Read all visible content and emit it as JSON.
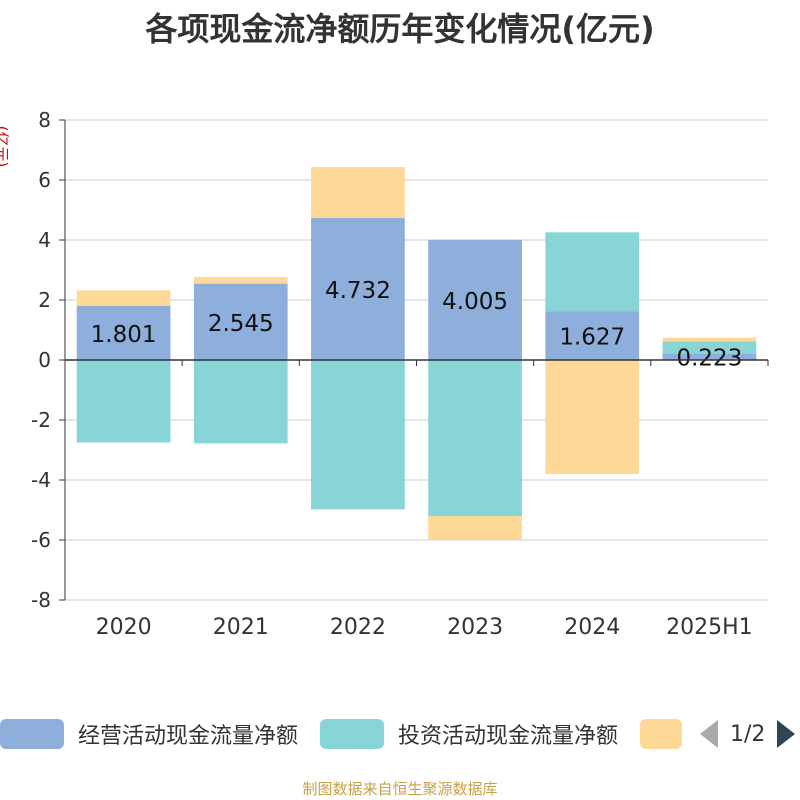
{
  "title": "各项现金流净额历年变化情况(亿元)",
  "unit_label": "(亿元)",
  "footer": "制图数据来自恒生聚源数据库",
  "legend": {
    "items": [
      {
        "label": "经营活动现金流量净额",
        "color": "#8eaedb"
      },
      {
        "label": "投资活动现金流量净额",
        "color": "#88d5d8"
      },
      {
        "label": "",
        "color": "#fed897"
      }
    ],
    "page": "1/2"
  },
  "chart_data": {
    "type": "bar",
    "stacked": true,
    "categories": [
      "2020",
      "2021",
      "2022",
      "2023",
      "2024",
      "2025H1"
    ],
    "ylim": [
      -8,
      8
    ],
    "yticks": [
      "8",
      "6",
      "4",
      "2",
      "0",
      "-2",
      "-4",
      "-6",
      "-8"
    ],
    "grid": true,
    "legend_position": "bottom",
    "series": [
      {
        "name": "经营活动现金流量净额",
        "color": "#8eaedb",
        "values": [
          1.801,
          2.545,
          4.732,
          4.005,
          1.627,
          0.223
        ],
        "labels": [
          "1.801",
          "2.545",
          "4.732",
          "4.005",
          "1.627",
          "0.223"
        ]
      },
      {
        "name": "投资活动现金流量净额",
        "color": "#88d5d8",
        "values": [
          -2.75,
          -2.78,
          -4.98,
          -5.2,
          2.63,
          0.4
        ]
      },
      {
        "name": "",
        "color": "#fed897",
        "values": [
          0.52,
          0.22,
          1.7,
          -0.8,
          -3.8,
          0.12
        ]
      }
    ]
  }
}
